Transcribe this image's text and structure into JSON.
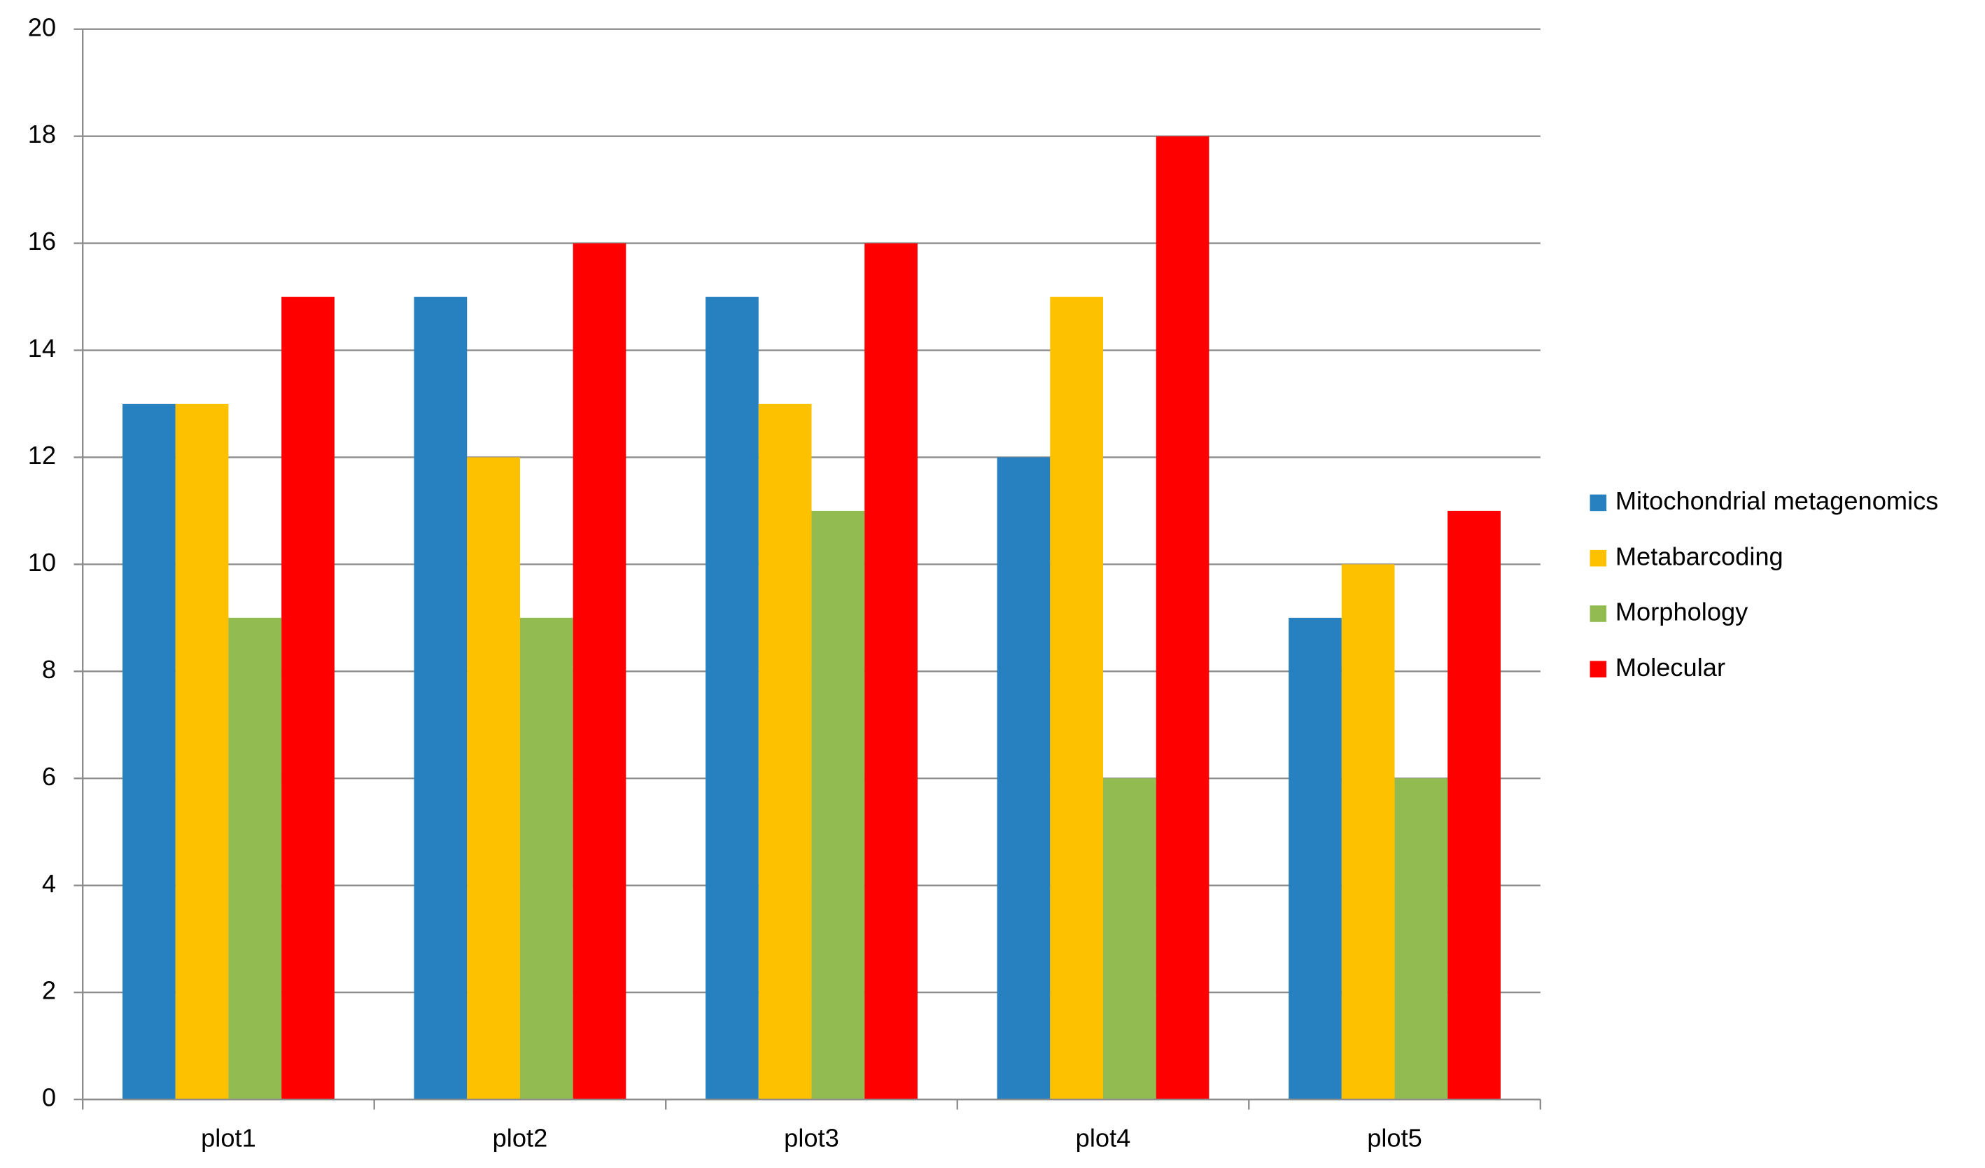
{
  "chart_data": {
    "type": "bar",
    "categories": [
      "plot1",
      "plot2",
      "plot3",
      "plot4",
      "plot5"
    ],
    "series": [
      {
        "name": "Mitochondrial metagenomics",
        "color": "#2781c1",
        "values": [
          13,
          15,
          15,
          12,
          9
        ]
      },
      {
        "name": "Metabarcoding",
        "color": "#fdc100",
        "values": [
          13,
          12,
          13,
          15,
          10
        ]
      },
      {
        "name": "Morphology",
        "color": "#92bb51",
        "values": [
          9,
          9,
          11,
          6,
          6
        ]
      },
      {
        "name": "Molecular",
        "color": "#ff0000",
        "values": [
          15,
          16,
          16,
          18,
          11
        ]
      }
    ],
    "ylim": [
      0,
      20
    ],
    "yticks": [
      0,
      2,
      4,
      6,
      8,
      10,
      12,
      14,
      16,
      18,
      20
    ],
    "grid": true,
    "legend": "right"
  }
}
